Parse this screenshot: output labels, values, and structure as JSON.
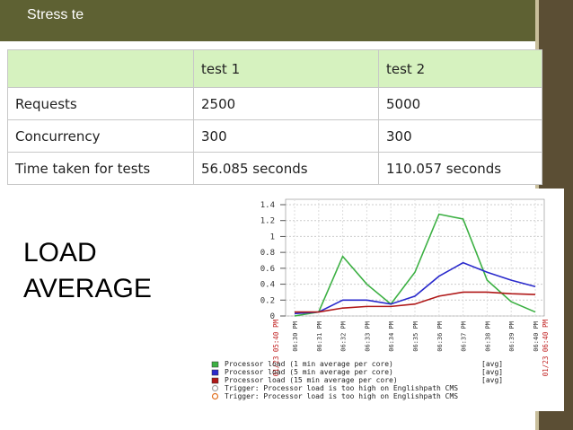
{
  "slide_title": "Stress te",
  "table": {
    "header": [
      "test 1",
      "test 2"
    ],
    "rows": [
      [
        "Requests",
        "2500",
        "5000"
      ],
      [
        "Concurrency",
        "300",
        "300"
      ],
      [
        "Time taken for tests",
        "56.085 seconds",
        "110.057 seconds"
      ]
    ]
  },
  "side_text": [
    "LOAD",
    "AVERAGE"
  ],
  "chart_data": {
    "type": "line",
    "categories": [
      "06:30 PM",
      "06:31 PM",
      "06:32 PM",
      "06:33 PM",
      "06:34 PM",
      "06:35 PM",
      "06:36 PM",
      "06:37 PM",
      "06:38 PM",
      "06:39 PM",
      "06:40 PM"
    ],
    "range_labels": [
      "01/23 05:40 PM",
      "01/23 06:40 PM"
    ],
    "ylim": [
      0,
      1.4
    ],
    "yticks": [
      0,
      0.2,
      0.4,
      0.6,
      0.8,
      1,
      1.2,
      1.4
    ],
    "grid": true,
    "series": [
      {
        "name": "Processor load (1 min average per core)",
        "tag": "[avg]",
        "color": "#3cb043",
        "values": [
          0,
          0.05,
          0.75,
          0.4,
          0.15,
          0.55,
          1.28,
          1.22,
          0.45,
          0.18,
          0.05
        ]
      },
      {
        "name": "Processor load (5 min average per core)",
        "tag": "[avg]",
        "color": "#2a2acc",
        "values": [
          0.03,
          0.05,
          0.2,
          0.2,
          0.15,
          0.25,
          0.5,
          0.67,
          0.55,
          0.45,
          0.37
        ]
      },
      {
        "name": "Processor load (15 min average per core)",
        "tag": "[avg]",
        "color": "#b01818",
        "values": [
          0.05,
          0.05,
          0.1,
          0.12,
          0.12,
          0.15,
          0.25,
          0.3,
          0.3,
          0.28,
          0.27
        ]
      }
    ],
    "triggers": [
      {
        "name": "Trigger: Processor load is too high on Englishpath CMS",
        "color": "#a0a0a0"
      },
      {
        "name": "Trigger: Processor load is too high on Englishpath CMS",
        "color": "#e07020"
      }
    ]
  }
}
